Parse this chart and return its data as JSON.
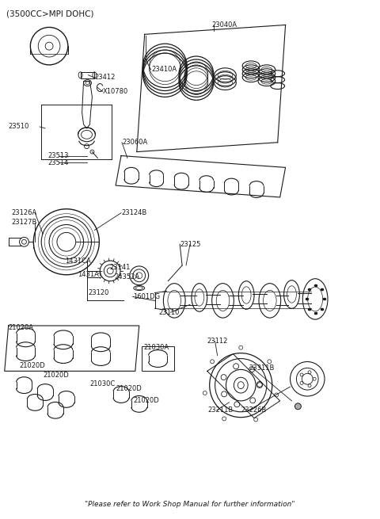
{
  "title": "(3500CC>MPI DOHC)",
  "footer": "\"Please refer to Work Shop Manual for further information\"",
  "bg_color": "#ffffff",
  "line_color": "#1a1a1a",
  "figsize": [
    4.8,
    6.55
  ],
  "dpi": 100,
  "labels": [
    [
      "23040A",
      268,
      28
    ],
    [
      "23410A",
      191,
      85
    ],
    [
      "23412",
      118,
      95
    ],
    [
      "X10780",
      128,
      113
    ],
    [
      "23510",
      8,
      158
    ],
    [
      "23513",
      58,
      195
    ],
    [
      "23514",
      58,
      204
    ],
    [
      "23060A",
      153,
      178
    ],
    [
      "23126A",
      12,
      268
    ],
    [
      "23127B",
      12,
      280
    ],
    [
      "23124B",
      152,
      268
    ],
    [
      "1431CA",
      80,
      330
    ],
    [
      "1431AT",
      96,
      347
    ],
    [
      "23141",
      137,
      338
    ],
    [
      "24352A",
      143,
      350
    ],
    [
      "23125",
      227,
      308
    ],
    [
      "23120",
      110,
      370
    ],
    [
      "1601DG",
      167,
      375
    ],
    [
      "23110",
      200,
      395
    ],
    [
      "21020A",
      8,
      415
    ],
    [
      "21020D",
      22,
      463
    ],
    [
      "21020D",
      52,
      475
    ],
    [
      "21020D",
      145,
      492
    ],
    [
      "21020D",
      168,
      508
    ],
    [
      "21030A",
      181,
      440
    ],
    [
      "21030C",
      112,
      486
    ],
    [
      "23112",
      262,
      432
    ],
    [
      "23311B",
      315,
      466
    ],
    [
      "23211B",
      263,
      520
    ],
    [
      "23226B",
      305,
      520
    ]
  ]
}
